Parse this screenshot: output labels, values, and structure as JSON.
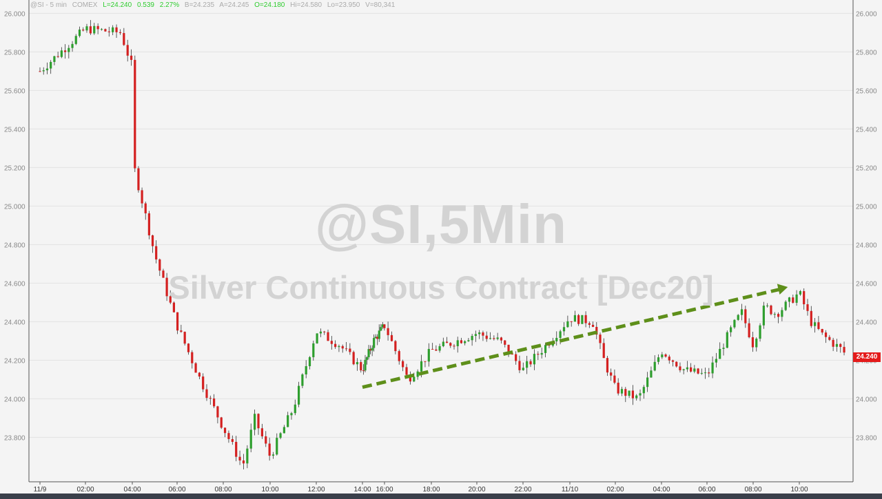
{
  "header": {
    "symbol": "@SI - 5 min",
    "exchange": "COMEX",
    "last": "L=24.240",
    "change": "0.539",
    "pct": "2.27%",
    "bid": "B=24.235",
    "ask": "A=24.245",
    "open": "O=24.180",
    "high": "Hi=24.580",
    "low": "Lo=23.950",
    "volume": "V=80,341"
  },
  "watermark": {
    "line1": "@SI,5Min",
    "line2": "Silver Continuous Contract [Dec20]"
  },
  "last_label": "24.240",
  "colors": {
    "up": "#2e9e2e",
    "down": "#d42020",
    "arrow": "#5e8f1a",
    "last_box": "#e41b1b",
    "background": "#f4f4f4"
  },
  "chart_data": {
    "type": "candlestick",
    "title": "",
    "ylim": [
      23.58,
      26.08
    ],
    "yticks": [
      "26.000",
      "25.800",
      "25.600",
      "25.400",
      "25.200",
      "25.000",
      "24.800",
      "24.600",
      "24.400",
      "24.200",
      "24.000",
      "23.800"
    ],
    "xticks": [
      "11/9",
      "02:00",
      "04:00",
      "06:00",
      "08:00",
      "10:00",
      "12:00",
      "14:00",
      "16:00",
      "18:00",
      "20:00",
      "22:00",
      "11/10",
      "02:00",
      "04:00",
      "06:00",
      "08:00",
      "10:00"
    ],
    "trend_arrow": {
      "from": {
        "time": "14:00",
        "price": 24.06
      },
      "to": {
        "time": "10:00",
        "price": 24.58
      }
    },
    "price_path": [
      [
        "11/9",
        25.7
      ],
      [
        "02:00",
        25.92
      ],
      [
        "03:30",
        25.9
      ],
      [
        "04:00",
        25.72
      ],
      [
        "04:05",
        25.2
      ],
      [
        "05:00",
        24.75
      ],
      [
        "06:00",
        24.38
      ],
      [
        "07:00",
        24.1
      ],
      [
        "08:00",
        23.85
      ],
      [
        "08:50",
        23.65
      ],
      [
        "09:20",
        23.9
      ],
      [
        "10:00",
        23.7
      ],
      [
        "11:00",
        23.95
      ],
      [
        "12:00",
        24.35
      ],
      [
        "13:00",
        24.28
      ],
      [
        "14:00",
        24.15
      ],
      [
        "15:00",
        24.3
      ],
      [
        "16:00",
        24.38
      ],
      [
        "17:00",
        24.1
      ],
      [
        "18:00",
        24.25
      ],
      [
        "20:00",
        24.34
      ],
      [
        "21:00",
        24.3
      ],
      [
        "22:00",
        24.15
      ],
      [
        "23:00",
        24.28
      ],
      [
        "11/10",
        24.42
      ],
      [
        "01:00",
        24.4
      ],
      [
        "01:30",
        24.2
      ],
      [
        "02:00",
        24.05
      ],
      [
        "03:00",
        24.0
      ],
      [
        "04:00",
        24.25
      ],
      [
        "05:00",
        24.15
      ],
      [
        "06:00",
        24.12
      ],
      [
        "07:00",
        24.35
      ],
      [
        "07:30",
        24.45
      ],
      [
        "08:00",
        24.28
      ],
      [
        "08:30",
        24.48
      ],
      [
        "09:00",
        24.44
      ],
      [
        "10:00",
        24.55
      ],
      [
        "10:30",
        24.4
      ],
      [
        "11:00",
        24.33
      ],
      [
        "12:00",
        24.24
      ]
    ]
  }
}
